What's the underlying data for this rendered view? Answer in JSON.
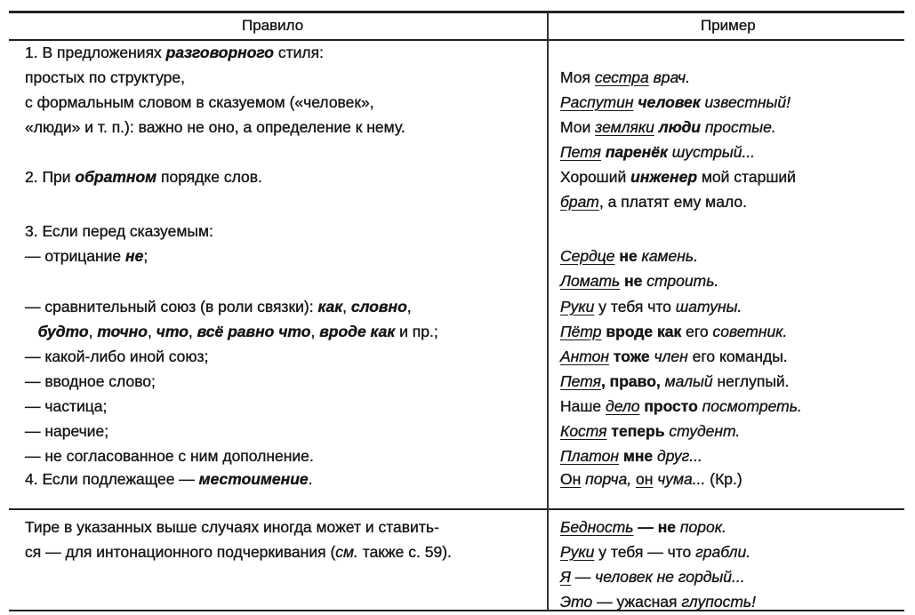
{
  "header": {
    "rule": "Правило",
    "example": "Пример"
  },
  "rows": {
    "left": [
      [
        [
          "1. В предложениях ",
          ""
        ],
        [
          "разговорного",
          "bi"
        ],
        [
          " стиля:",
          ""
        ]
      ],
      [
        [
          "простых по структуре,",
          ""
        ]
      ],
      [
        [
          "с формальным словом в сказуемом («человек»,",
          ""
        ]
      ],
      [
        [
          "«люди» и т. п.): важно не оно, а определение к нему.",
          ""
        ]
      ],
      [
        [
          "2. При ",
          ""
        ],
        [
          "обратном",
          "bi"
        ],
        [
          " порядке слов.",
          ""
        ]
      ],
      [
        [
          "3. Если перед сказуемым:",
          ""
        ]
      ],
      [
        [
          "— отрицание ",
          ""
        ],
        [
          "не",
          "bi"
        ],
        [
          ";",
          ""
        ]
      ],
      [
        [
          "— сравнительный союз (в роли связки): ",
          ""
        ],
        [
          "как",
          "bi"
        ],
        [
          ", ",
          ""
        ],
        [
          "словно",
          "bi"
        ],
        [
          ",",
          ""
        ]
      ],
      [
        [
          "   ",
          ""
        ],
        [
          "будто",
          "bi"
        ],
        [
          ", ",
          ""
        ],
        [
          "точно",
          "bi"
        ],
        [
          ", ",
          ""
        ],
        [
          "что",
          "bi"
        ],
        [
          ", ",
          ""
        ],
        [
          "всё равно что",
          "bi"
        ],
        [
          ", ",
          ""
        ],
        [
          "вроде как",
          "bi"
        ],
        [
          " и пр.;",
          ""
        ]
      ],
      [
        [
          "— какой-либо иной союз;",
          ""
        ]
      ],
      [
        [
          "— вводное слово;",
          ""
        ]
      ],
      [
        [
          "— частица;",
          ""
        ]
      ],
      [
        [
          "— наречие;",
          ""
        ]
      ],
      [
        [
          "— не согласованное с ним дополнение.",
          ""
        ]
      ],
      [
        [
          "4. Если подлежащее — ",
          ""
        ],
        [
          "местоимение",
          "bi"
        ],
        [
          ".",
          ""
        ]
      ],
      [
        [
          "Тире в указанных выше случаях иногда может и ставить-",
          ""
        ]
      ],
      [
        [
          "ся — для интонационного подчеркивания (",
          ""
        ],
        [
          "см.",
          "i"
        ],
        [
          " также с. 59).",
          ""
        ]
      ]
    ],
    "right": [
      [
        [
          "Моя ",
          ""
        ],
        [
          "сестра",
          "iu"
        ],
        [
          " ",
          ""
        ],
        [
          "врач.",
          "i"
        ]
      ],
      [
        [
          "Распутин",
          "iu"
        ],
        [
          " человек",
          "bi"
        ],
        [
          " известный!",
          "i"
        ]
      ],
      [
        [
          "Мои ",
          ""
        ],
        [
          "земляки",
          "iu"
        ],
        [
          " люди",
          "bi"
        ],
        [
          " простые.",
          "i"
        ]
      ],
      [
        [
          "Петя",
          "iu"
        ],
        [
          " паренёк",
          "bi"
        ],
        [
          " шустрый...",
          "i"
        ]
      ],
      [
        [
          "Хороший ",
          ""
        ],
        [
          "инженер",
          "bi"
        ],
        [
          " мой старший",
          ""
        ]
      ],
      [
        [
          "брат",
          "iu"
        ],
        [
          ", а платят ему мало.",
          ""
        ]
      ],
      [
        [
          "Сердце",
          "iu"
        ],
        [
          " не",
          "b"
        ],
        [
          " камень.",
          "i"
        ]
      ],
      [
        [
          "Ломать",
          "iu"
        ],
        [
          " не ",
          "b"
        ],
        [
          "строить.",
          "i"
        ]
      ],
      [
        [
          "Руки",
          "iu"
        ],
        [
          " у тебя что ",
          ""
        ],
        [
          "шатуны.",
          "i"
        ]
      ],
      [
        [
          "Пётр",
          "iu"
        ],
        [
          " вроде как",
          "b"
        ],
        [
          " его ",
          ""
        ],
        [
          "советник.",
          "i"
        ]
      ],
      [
        [
          "Антон",
          "iu"
        ],
        [
          " тоже",
          "b"
        ],
        [
          " член",
          "i"
        ],
        [
          " его команды.",
          ""
        ]
      ],
      [
        [
          "Петя",
          "iu"
        ],
        [
          ", право,",
          "b"
        ],
        [
          " малый",
          "i"
        ],
        [
          " неглупый.",
          ""
        ]
      ],
      [
        [
          "Наше ",
          ""
        ],
        [
          "дело",
          "iu"
        ],
        [
          " просто",
          "b"
        ],
        [
          " посмотреть.",
          "i"
        ]
      ],
      [
        [
          "Костя",
          "iu"
        ],
        [
          " теперь",
          "b"
        ],
        [
          " студент.",
          "i"
        ]
      ],
      [
        [
          "Платон",
          "iu"
        ],
        [
          " мне",
          "b"
        ],
        [
          " друг...",
          "i"
        ]
      ],
      [
        [
          "Он",
          "u"
        ],
        [
          " порча, ",
          "i"
        ],
        [
          "он",
          "u"
        ],
        [
          " чума...",
          "i"
        ],
        [
          " (Кр.)",
          ""
        ]
      ],
      [
        [
          "Бедность",
          "iu"
        ],
        [
          " — не",
          "b"
        ],
        [
          " порок.",
          "i"
        ]
      ],
      [
        [
          "Руки",
          "iu"
        ],
        [
          " у тебя — что ",
          ""
        ],
        [
          "грабли.",
          "i"
        ]
      ],
      [
        [
          "Я",
          "iu"
        ],
        [
          " — человек не гордый...",
          "i"
        ]
      ],
      [
        [
          "Это",
          "iu"
        ],
        [
          " — ужасная ",
          ""
        ],
        [
          "глупость!",
          "i"
        ]
      ]
    ]
  }
}
